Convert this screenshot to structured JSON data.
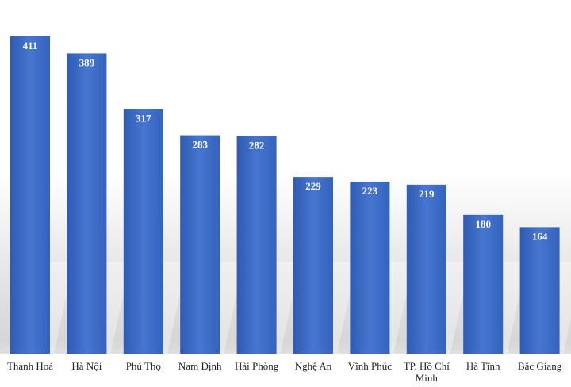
{
  "chart_data": {
    "type": "bar",
    "categories": [
      "Thanh Hoá",
      "Hà Nội",
      "Phú Thọ",
      "Nam Định",
      "Hải Phòng",
      "Nghệ An",
      "Vĩnh Phúc",
      "TP. Hồ Chí Minh",
      "Hà Tĩnh",
      "Bắc Giang"
    ],
    "values": [
      411,
      389,
      317,
      283,
      282,
      229,
      223,
      219,
      180,
      164
    ],
    "color": "#3f6fc8"
  }
}
